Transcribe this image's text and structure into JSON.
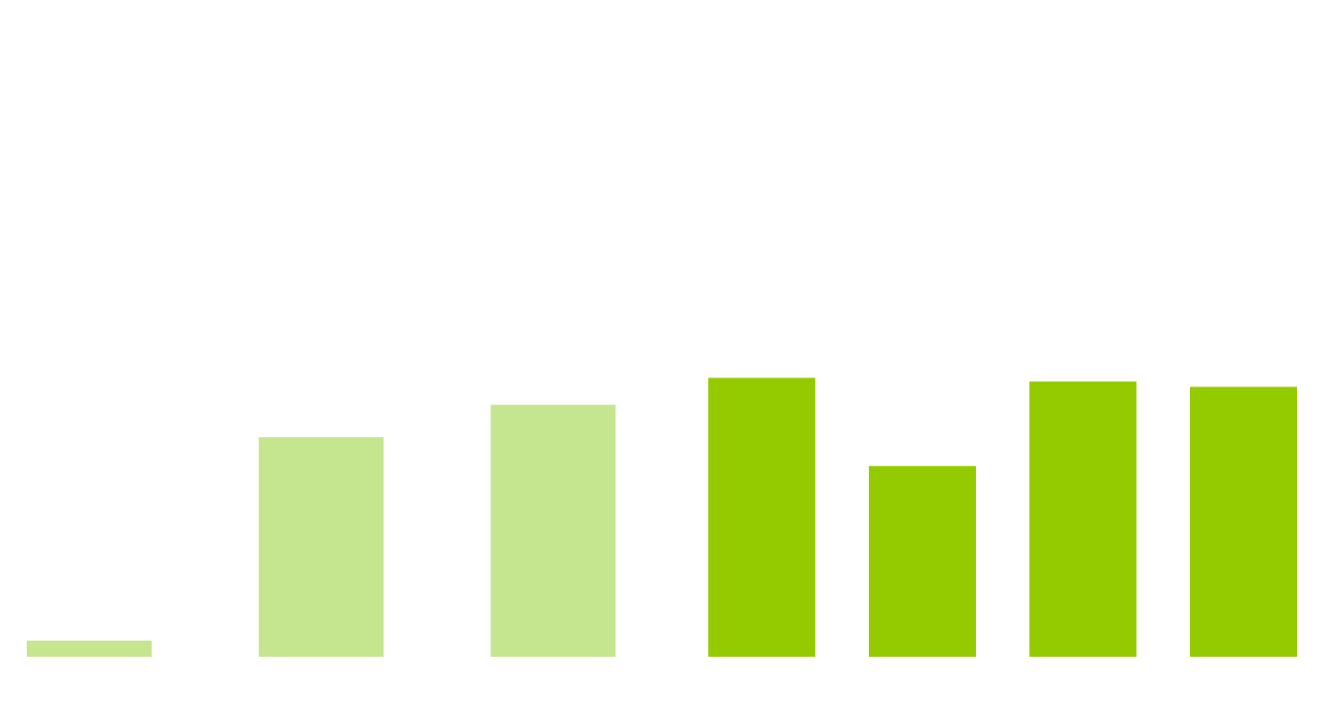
{
  "chart_data": {
    "type": "bar",
    "values": [
      1.8,
      24.4,
      28.0,
      31.0,
      21.2,
      30.6,
      30.0
    ],
    "ylim": [
      0,
      73
    ],
    "grid": false,
    "colors": {
      "light": "#c5e68f",
      "dark": "#93ca00"
    },
    "bar_color_groups": [
      "light",
      "light",
      "light",
      "dark",
      "dark",
      "dark",
      "dark"
    ]
  }
}
